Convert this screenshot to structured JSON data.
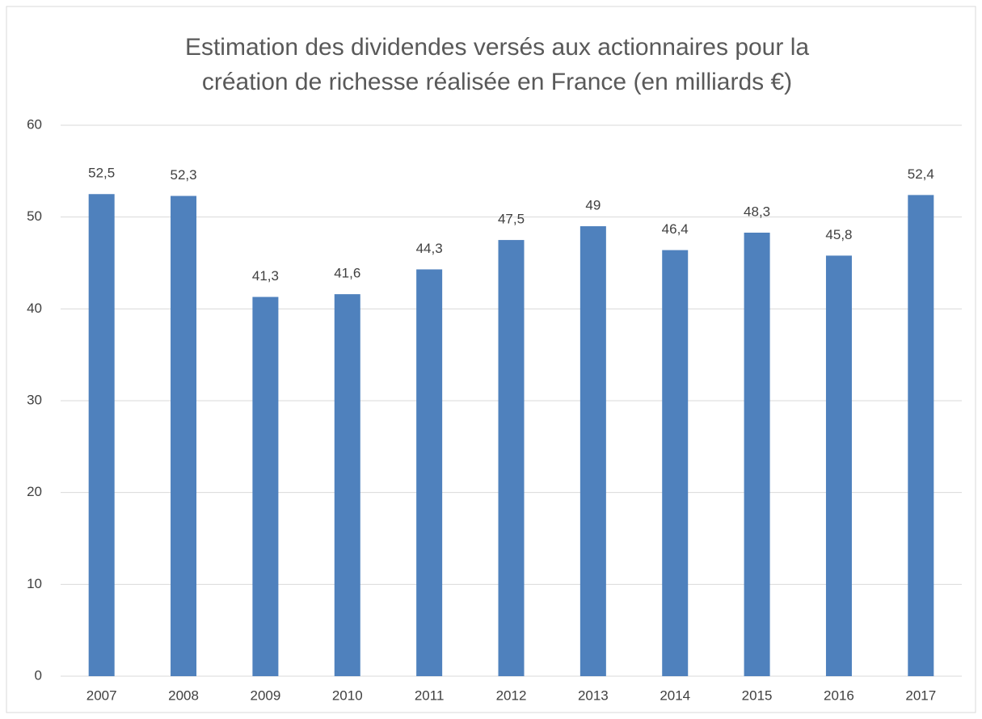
{
  "chart_data": {
    "type": "bar",
    "title": [
      "Estimation des dividendes versés aux actionnaires pour la",
      "création de richesse réalisée en France (en milliards €)"
    ],
    "categories": [
      "2007",
      "2008",
      "2009",
      "2010",
      "2011",
      "2012",
      "2013",
      "2014",
      "2015",
      "2016",
      "2017"
    ],
    "values": [
      52.5,
      52.3,
      41.3,
      41.6,
      44.3,
      47.5,
      49,
      46.4,
      48.3,
      45.8,
      52.4
    ],
    "value_labels": [
      "52,5",
      "52,3",
      "41,3",
      "41,6",
      "44,3",
      "47,5",
      "49",
      "46,4",
      "48,3",
      "45,8",
      "52,4"
    ],
    "color": "#4f81bd",
    "ylim": [
      0,
      60
    ],
    "yticks": [
      0,
      10,
      20,
      30,
      40,
      50,
      60
    ],
    "grid": true
  }
}
